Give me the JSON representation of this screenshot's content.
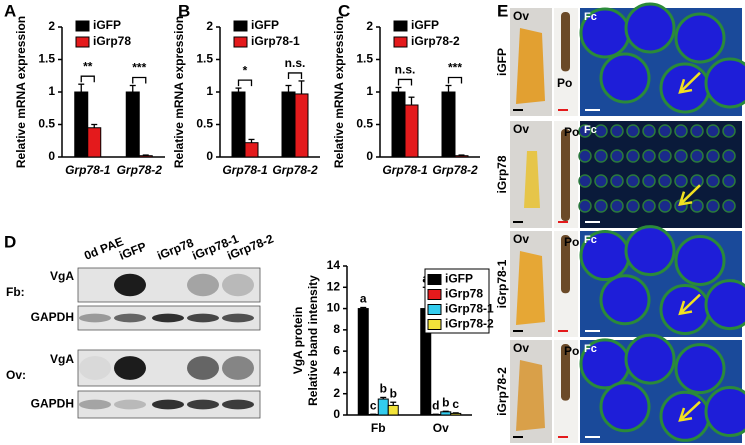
{
  "chart_data": [
    {
      "type": "bar",
      "panel": "A",
      "y_label": "Relative mRNA expression",
      "categories": [
        "Grp78-1",
        "Grp78-2"
      ],
      "series": [
        {
          "name": "iGFP",
          "color": "#000000",
          "values": [
            1,
            1
          ],
          "errors": [
            0.12,
            0.1
          ]
        },
        {
          "name": "iGrp78",
          "color": "#e41a1c",
          "values": [
            0.45,
            0.02
          ],
          "errors": [
            0.05,
            0.01
          ]
        }
      ],
      "annotations": [
        "**",
        "***"
      ],
      "ylim": [
        0,
        2
      ],
      "yticks": [
        0,
        0.5,
        1,
        1.5,
        2
      ]
    },
    {
      "type": "bar",
      "panel": "B",
      "y_label": "Relative mRNA expression",
      "categories": [
        "Grp78-1",
        "Grp78-2"
      ],
      "series": [
        {
          "name": "iGFP",
          "color": "#000000",
          "values": [
            1,
            1
          ],
          "errors": [
            0.06,
            0.1
          ]
        },
        {
          "name": "iGrp78-1",
          "color": "#e41a1c",
          "values": [
            0.22,
            0.97
          ],
          "errors": [
            0.05,
            0.2
          ]
        }
      ],
      "annotations": [
        "*",
        "n.s."
      ],
      "ylim": [
        0,
        2
      ],
      "yticks": [
        0,
        0.5,
        1,
        1.5,
        2
      ]
    },
    {
      "type": "bar",
      "panel": "C",
      "y_label": "Relative mRNA expression",
      "categories": [
        "Grp78-1",
        "Grp78-2"
      ],
      "series": [
        {
          "name": "iGFP",
          "color": "#000000",
          "values": [
            1,
            1
          ],
          "errors": [
            0.07,
            0.1
          ]
        },
        {
          "name": "iGrp78-2",
          "color": "#e41a1c",
          "values": [
            0.8,
            0.02
          ],
          "errors": [
            0.12,
            0.01
          ]
        }
      ],
      "annotations": [
        "n.s.",
        "***"
      ],
      "ylim": [
        0,
        2
      ],
      "yticks": [
        0,
        0.5,
        1,
        1.5,
        2
      ]
    },
    {
      "type": "bar",
      "y_label": [
        "VgA protein",
        "Relative band intensity"
      ],
      "categories": [
        "Fb",
        "Ov"
      ],
      "series": [
        {
          "name": "iGFP",
          "color": "#000000",
          "values": [
            10,
            10
          ],
          "errors": [
            0.1,
            2
          ],
          "letters": [
            "a",
            "a"
          ]
        },
        {
          "name": "iGrp78",
          "color": "#e41a1c",
          "values": [
            0.05,
            0.05
          ],
          "errors": [
            0.02,
            0.02
          ],
          "letters": [
            "c",
            "d"
          ]
        },
        {
          "name": "iGrp78-1",
          "color": "#33ccee",
          "values": [
            1.5,
            0.3
          ],
          "errors": [
            0.15,
            0.05
          ],
          "letters": [
            "b",
            "b"
          ]
        },
        {
          "name": "iGrp78-2",
          "color": "#f2e33a",
          "values": [
            0.9,
            0.15
          ],
          "errors": [
            0.3,
            0.05
          ],
          "letters": [
            "b",
            "c"
          ]
        }
      ],
      "ylim": [
        0,
        14
      ],
      "yticks": [
        0,
        2,
        4,
        6,
        8,
        10,
        12,
        14
      ]
    }
  ],
  "blot": {
    "panel": "D",
    "lanes": [
      "0d PAE",
      "iGFP",
      "iGrp78",
      "iGrp78-1",
      "iGrp78-2"
    ],
    "rows": [
      {
        "protein": "VgA",
        "tissue": "Fb:"
      },
      {
        "protein": "GAPDH"
      },
      {
        "protein": "VgA",
        "tissue": "Ov:"
      },
      {
        "protein": "GAPDH"
      }
    ]
  },
  "micrographs": {
    "panel": "E",
    "rows": [
      "iGFP",
      "iGrp78",
      "iGrp78-1",
      "iGrp78-2"
    ],
    "columns": [
      "Ov",
      "Po",
      "Fc"
    ]
  }
}
